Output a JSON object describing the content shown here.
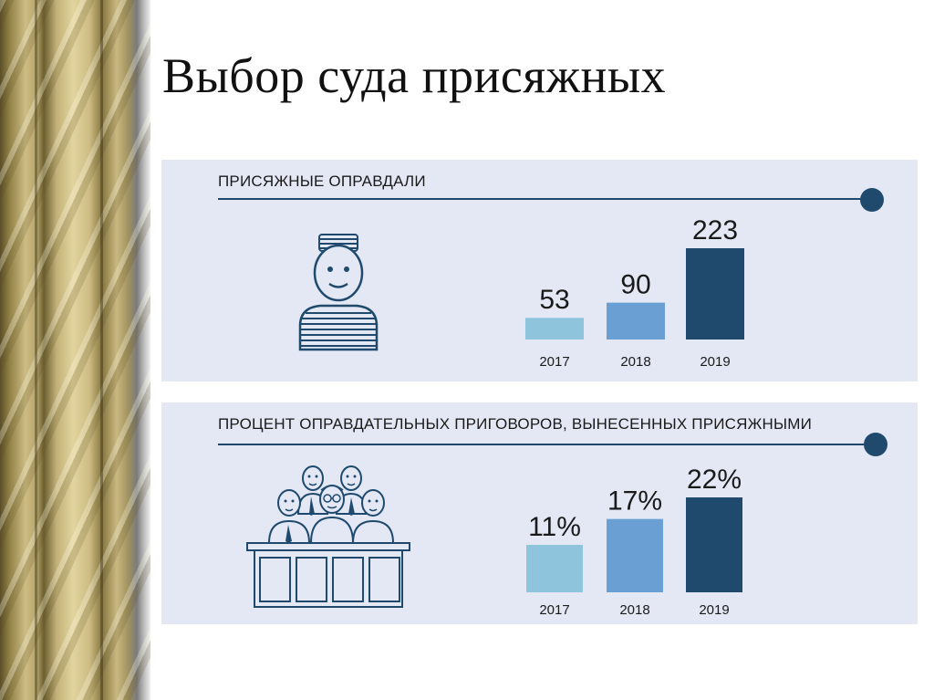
{
  "slide": {
    "title": "Выбор суда присяжных"
  },
  "colors": {
    "panel_bg": "#e3e8f4",
    "accent": "#1f4a6e",
    "bar_2017": "#8ec5dc",
    "bar_2018": "#6a9fd3",
    "bar_2019": "#1f4a6e"
  },
  "panels": [
    {
      "heading": "ПРИСЯЖНЫЕ ОПРАВДАЛИ",
      "icon": "prisoner-icon"
    },
    {
      "heading": "ПРОЦЕНТ ОПРАВДАТЕЛЬНЫХ ПРИГОВОРОВ, ВЫНЕСЕННЫХ ПРИСЯЖНЫМИ",
      "icon": "jury-icon"
    }
  ],
  "chart_data": [
    {
      "type": "bar",
      "title": "ПРИСЯЖНЫЕ ОПРАВДАЛИ",
      "categories": [
        "2017",
        "2018",
        "2019"
      ],
      "values": [
        53,
        90,
        223
      ],
      "value_labels": [
        "53",
        "90",
        "223"
      ],
      "bar_colors": [
        "#8ec5dc",
        "#6a9fd3",
        "#1f4a6e"
      ],
      "xlabel": "",
      "ylabel": "",
      "ylim": [
        0,
        223
      ],
      "grid": false
    },
    {
      "type": "bar",
      "title": "ПРОЦЕНТ ОПРАВДАТЕЛЬНЫХ ПРИГОВОРОВ, ВЫНЕСЕННЫХ ПРИСЯЖНЫМИ",
      "categories": [
        "2017",
        "2018",
        "2019"
      ],
      "values": [
        11,
        17,
        22
      ],
      "value_labels": [
        "11%",
        "17%",
        "22%"
      ],
      "bar_colors": [
        "#8ec5dc",
        "#6a9fd3",
        "#1f4a6e"
      ],
      "xlabel": "",
      "ylabel": "",
      "ylim": [
        0,
        22
      ],
      "grid": false
    }
  ]
}
